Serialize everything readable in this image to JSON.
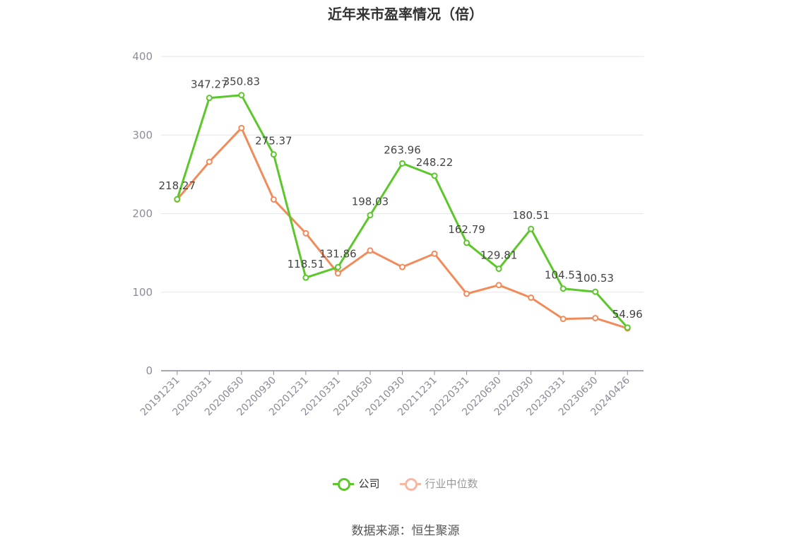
{
  "title": "近年来市盈率情况（倍）",
  "source": "数据来源：恒生聚源",
  "colors": {
    "company": "#5cc72b",
    "industry": "#f28b5a",
    "industry_legend": "#f7b7a0",
    "grid": "#e4e6ee",
    "axis": "#8c8c99",
    "tick": "#8c8c99",
    "label": "#444444"
  },
  "legend": [
    {
      "name": "公司",
      "color": "#5cc72b",
      "text_color": "#333333"
    },
    {
      "name": "行业中位数",
      "color": "#f7b7a0",
      "text_color": "#999999"
    }
  ],
  "chart_data": {
    "type": "line",
    "title": "近年来市盈率情况（倍）",
    "categories": [
      "20191231",
      "20200331",
      "20200630",
      "20200930",
      "20201231",
      "20210331",
      "20210630",
      "20210930",
      "20211231",
      "20220331",
      "20220630",
      "20220930",
      "20230331",
      "20230630",
      "20240426"
    ],
    "y_ticks": [
      0,
      100,
      200,
      300,
      400
    ],
    "ylim": [
      0,
      400
    ],
    "grid": true,
    "legend_position": "bottom",
    "series": [
      {
        "name": "公司",
        "values": [
          218.27,
          347.27,
          350.83,
          275.37,
          118.51,
          131.86,
          198.03,
          263.96,
          248.22,
          162.79,
          129.81,
          180.51,
          104.53,
          100.53,
          54.96
        ],
        "labels": [
          "218.27",
          "347.27",
          "350.83",
          "275.37",
          "118.51",
          "131.86",
          "198.03",
          "263.96",
          "248.22",
          "162.79",
          "129.81",
          "180.51",
          "104.53",
          "100.53",
          "54.96"
        ]
      },
      {
        "name": "行业中位数",
        "values": [
          218,
          266,
          309,
          218,
          175,
          124,
          153,
          132,
          149,
          98,
          109,
          93,
          66,
          67,
          54
        ]
      }
    ]
  }
}
